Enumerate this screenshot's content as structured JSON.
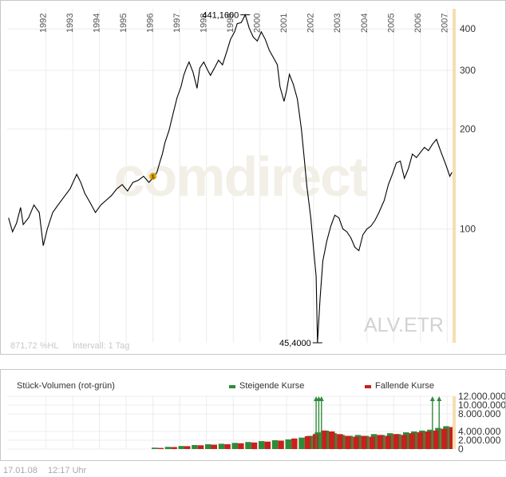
{
  "chart_data": [
    {
      "type": "line",
      "symbol": "ALV.ETR",
      "watermark": "comdirect",
      "years": [
        "1992",
        "1993",
        "1994",
        "1995",
        "1996",
        "1997",
        "1998",
        "1999",
        "2000",
        "2001",
        "2002",
        "2003",
        "2004",
        "2005",
        "2006",
        "2007"
      ],
      "x_range": [
        1991.4,
        2008.05
      ],
      "y_axis": {
        "scale": "log",
        "ticks": [
          100,
          200,
          300,
          400
        ],
        "range": [
          45.4,
          460
        ]
      },
      "max_label": "441,1600",
      "min_label": "45,4000",
      "max_point": [
        2000.3,
        441.16
      ],
      "min_point": [
        2003.0,
        45.4
      ],
      "dividend_marker": {
        "label": "$",
        "x": 1996.85,
        "y": 144
      },
      "info": {
        "change": "871,72 %HL",
        "interval": "Intervall: 1 Tag"
      },
      "series": [
        {
          "x": [
            1991.45,
            1991.6,
            1991.75,
            1991.9,
            1992.0,
            1992.2,
            1992.4,
            1992.6,
            1992.75,
            1992.9,
            1993.1,
            1993.3,
            1993.5,
            1993.75,
            1994.0,
            1994.15,
            1994.3,
            1994.5,
            1994.7,
            1994.9,
            1995.1,
            1995.3,
            1995.5,
            1995.7,
            1995.9,
            1996.1,
            1996.3,
            1996.5,
            1996.7,
            1996.9,
            1997.0,
            1997.1,
            1997.2,
            1997.3,
            1997.45,
            1997.6,
            1997.75,
            1997.9,
            1998.0,
            1998.1,
            1998.2,
            1998.35,
            1998.5,
            1998.6,
            1998.75,
            1998.9,
            1999.0,
            1999.15,
            1999.3,
            1999.45,
            1999.6,
            1999.75,
            1999.9,
            2000.0,
            2000.15,
            2000.3,
            2000.45,
            2000.6,
            2000.75,
            2000.9,
            2001.05,
            2001.2,
            2001.35,
            2001.5,
            2001.6,
            2001.75,
            2001.85,
            2001.95,
            2002.1,
            2002.25,
            2002.4,
            2002.5,
            2002.6,
            2002.75,
            2002.85,
            2002.95,
            2003.0,
            2003.1,
            2003.2,
            2003.35,
            2003.5,
            2003.65,
            2003.8,
            2003.95,
            2004.1,
            2004.25,
            2004.4,
            2004.55,
            2004.7,
            2004.85,
            2005.0,
            2005.15,
            2005.3,
            2005.5,
            2005.65,
            2005.8,
            2005.95,
            2006.1,
            2006.25,
            2006.4,
            2006.55,
            2006.7,
            2006.85,
            2007.0,
            2007.15,
            2007.3,
            2007.45,
            2007.6,
            2007.75,
            2007.85,
            2007.95,
            2008.03
          ],
          "y": [
            108,
            98,
            104,
            116,
            103,
            108,
            118,
            112,
            89,
            100,
            112,
            118,
            124,
            132,
            146,
            138,
            128,
            120,
            112,
            118,
            122,
            126,
            132,
            136,
            130,
            138,
            140,
            144,
            138,
            144,
            148,
            158,
            168,
            182,
            198,
            222,
            248,
            268,
            290,
            305,
            318,
            296,
            265,
            305,
            318,
            300,
            290,
            305,
            322,
            312,
            340,
            372,
            392,
            415,
            418,
            441,
            402,
            378,
            368,
            392,
            372,
            345,
            328,
            312,
            268,
            242,
            262,
            292,
            272,
            246,
            200,
            165,
            135,
            108,
            88,
            72,
            45.4,
            62,
            80,
            92,
            102,
            110,
            108,
            100,
            98,
            94,
            88,
            86,
            96,
            100,
            102,
            106,
            112,
            122,
            136,
            146,
            158,
            160,
            142,
            152,
            168,
            164,
            170,
            176,
            172,
            180,
            186,
            172,
            160,
            152,
            144,
            148
          ]
        }
      ]
    },
    {
      "type": "bar",
      "title": "Stück-Volumen (rot-grün)",
      "legend": {
        "rising": "Steigende Kurse",
        "falling": "Fallende Kurse"
      },
      "y_axis": {
        "ticks": [
          "0",
          "2.000.000",
          "4.000.000",
          "8.000.000",
          "10.000.000",
          "12.000.000"
        ],
        "tick_values": [
          0,
          2000000,
          4000000,
          8000000,
          10000000,
          12000000
        ],
        "range": [
          0,
          12000000
        ]
      },
      "series": [
        {
          "name": "Steigende Kurse",
          "color": "#2e8b3a",
          "period_start": [
            1996.8,
            1997.3,
            1997.8,
            1998.3,
            1998.8,
            1999.3,
            1999.8,
            2000.3,
            2000.8,
            2001.3,
            2001.8,
            2002.3,
            2002.6,
            2002.9,
            2003.2,
            2003.5,
            2003.8,
            2004.1,
            2004.4,
            2004.7,
            2005.0,
            2005.3,
            2005.6,
            2005.9,
            2006.2,
            2006.5,
            2006.8,
            2007.1,
            2007.4,
            2007.7
          ],
          "values": [
            300000,
            500000,
            700000,
            900000,
            1100000,
            1200000,
            1400000,
            1600000,
            1800000,
            2000000,
            2200000,
            2600000,
            3000000,
            3800000,
            4200000,
            3600000,
            3200000,
            3000000,
            3200000,
            3000000,
            3400000,
            3200000,
            3600000,
            3400000,
            3800000,
            4000000,
            4200000,
            4400000,
            4800000,
            5200000
          ]
        },
        {
          "name": "Fallende Kurse",
          "color": "#c8201c",
          "period_start": [
            1996.8,
            1997.3,
            1997.8,
            1998.3,
            1998.8,
            1999.3,
            1999.8,
            2000.3,
            2000.8,
            2001.3,
            2001.8,
            2002.3,
            2002.6,
            2002.9,
            2003.2,
            2003.5,
            2003.8,
            2004.1,
            2004.4,
            2004.7,
            2005.0,
            2005.3,
            2005.6,
            2005.9,
            2006.2,
            2006.5,
            2006.8,
            2007.1,
            2007.4,
            2007.7
          ],
          "values": [
            250000,
            450000,
            650000,
            850000,
            1000000,
            1100000,
            1300000,
            1500000,
            1700000,
            1900000,
            2400000,
            2900000,
            3400000,
            4200000,
            4000000,
            3400000,
            3000000,
            2800000,
            3000000,
            2800000,
            3200000,
            3000000,
            3400000,
            3200000,
            3600000,
            3800000,
            4000000,
            4200000,
            4600000,
            5000000
          ]
        }
      ],
      "overflow_markers_x": [
        2002.95,
        2003.05,
        2003.15,
        2007.3,
        2007.55
      ]
    }
  ],
  "footer": {
    "date": "17.01.08",
    "time": "12:17 Uhr"
  }
}
